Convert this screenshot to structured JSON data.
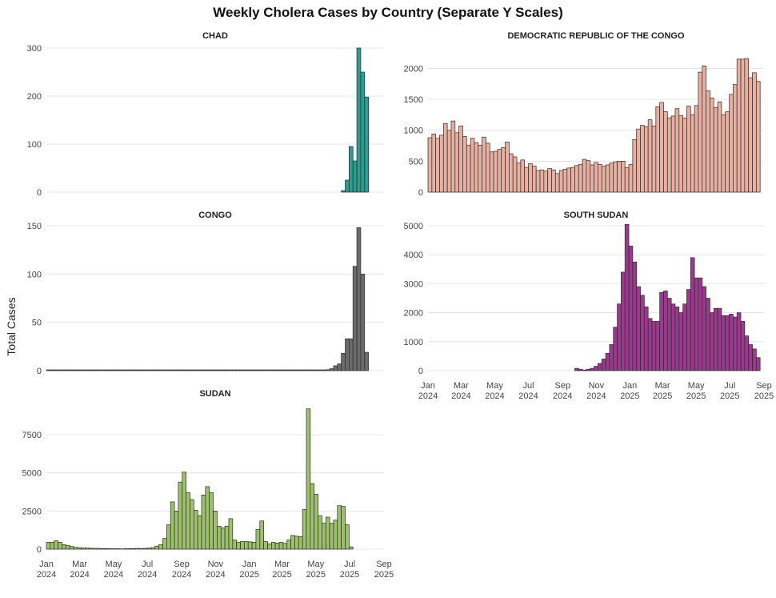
{
  "title": "Weekly Cholera Cases by Country (Separate Y Scales)",
  "ylabel": "Total Cases",
  "x_axis": {
    "tick_labels": [
      [
        "Jan",
        "2024"
      ],
      [
        "Mar",
        "2024"
      ],
      [
        "May",
        "2024"
      ],
      [
        "Jul",
        "2024"
      ],
      [
        "Sep",
        "2024"
      ],
      [
        "Nov",
        "2024"
      ],
      [
        "Jan",
        "2025"
      ],
      [
        "Mar",
        "2025"
      ],
      [
        "May",
        "2025"
      ],
      [
        "Jul",
        "2025"
      ],
      [
        "Sep",
        "2025"
      ]
    ]
  },
  "chart_data": [
    {
      "type": "bar",
      "title": "CHAD",
      "color": "#2a9d8f",
      "ylim": [
        0,
        300
      ],
      "yticks": [
        0,
        100,
        200,
        300
      ],
      "x": [
        "2025-06-16",
        "2025-06-23",
        "2025-06-30",
        "2025-07-07",
        "2025-07-14",
        "2025-07-21",
        "2025-07-28"
      ],
      "values": [
        3,
        25,
        95,
        65,
        300,
        250,
        198
      ]
    },
    {
      "type": "bar",
      "title": "DEMOCRATIC REPUBLIC OF THE CONGO",
      "color": "#e8b0a0",
      "ylim": [
        0,
        2200
      ],
      "yticks": [
        0,
        500,
        1000,
        1500,
        2000
      ],
      "x_start": "2024-01-01",
      "week_step_days": 7,
      "values": [
        880,
        940,
        870,
        920,
        1110,
        1000,
        1150,
        960,
        1070,
        900,
        760,
        870,
        800,
        760,
        890,
        790,
        650,
        660,
        690,
        720,
        810,
        620,
        570,
        470,
        520,
        400,
        460,
        420,
        350,
        360,
        340,
        380,
        360,
        300,
        350,
        370,
        390,
        400,
        430,
        450,
        530,
        510,
        440,
        480,
        450,
        420,
        440,
        470,
        490,
        500,
        500,
        400,
        450,
        850,
        1020,
        1080,
        1060,
        1170,
        1070,
        1380,
        1450,
        1300,
        1200,
        1230,
        1350,
        1240,
        1200,
        1390,
        1250,
        1400,
        1940,
        2040,
        1640,
        1520,
        1370,
        1460,
        1250,
        1300,
        1580,
        1740,
        2150,
        2150,
        2160,
        1850,
        1930,
        1790
      ]
    },
    {
      "type": "bar",
      "title": "CONGO",
      "color": "#6b6b6b",
      "ylim": [
        0,
        150
      ],
      "yticks": [
        0,
        50,
        100,
        150
      ],
      "x_start": "2024-01-01",
      "week_step_days": 7,
      "baseline_weeks": 72,
      "x": [
        "2025-05-19",
        "2025-05-26",
        "2025-06-02",
        "2025-06-09",
        "2025-06-16",
        "2025-06-23",
        "2025-06-30",
        "2025-07-07",
        "2025-07-14",
        "2025-07-21",
        "2025-07-28"
      ],
      "values": [
        1,
        2,
        5,
        7,
        18,
        33,
        33,
        108,
        148,
        100,
        19
      ]
    },
    {
      "type": "bar",
      "title": "SOUTH SUDAN",
      "color": "#9a3a8c",
      "ylim": [
        0,
        5000
      ],
      "yticks": [
        0,
        1000,
        2000,
        3000,
        4000,
        5000
      ],
      "x": [
        "2024-09-23",
        "2024-09-30",
        "2024-10-07",
        "2024-10-14",
        "2024-10-21",
        "2024-10-28",
        "2024-11-04",
        "2024-11-11",
        "2024-11-18",
        "2024-11-25",
        "2024-12-02",
        "2024-12-09",
        "2024-12-16",
        "2024-12-23",
        "2024-12-30",
        "2025-01-06",
        "2025-01-13",
        "2025-01-20",
        "2025-01-27",
        "2025-02-03",
        "2025-02-10",
        "2025-02-17",
        "2025-02-24",
        "2025-03-03",
        "2025-03-10",
        "2025-03-17",
        "2025-03-24",
        "2025-03-31",
        "2025-04-07",
        "2025-04-14",
        "2025-04-21",
        "2025-04-28",
        "2025-05-05",
        "2025-05-12",
        "2025-05-19",
        "2025-05-26",
        "2025-06-02",
        "2025-06-09",
        "2025-06-16",
        "2025-06-23",
        "2025-06-30",
        "2025-07-07",
        "2025-07-14",
        "2025-07-21",
        "2025-07-28",
        "2025-08-04",
        "2025-08-11",
        "2025-08-18"
      ],
      "values": [
        80,
        50,
        20,
        50,
        80,
        150,
        250,
        400,
        600,
        900,
        1500,
        2300,
        3400,
        5050,
        4300,
        3750,
        2900,
        2600,
        2200,
        1800,
        1700,
        1700,
        2700,
        2750,
        2500,
        2300,
        2200,
        2000,
        2300,
        2800,
        3900,
        3200,
        3200,
        2900,
        2500,
        2000,
        2150,
        2150,
        1900,
        1900,
        1950,
        1850,
        2000,
        1700,
        1200,
        900,
        750,
        450
      ]
    },
    {
      "type": "bar",
      "title": "SUDAN",
      "color": "#9dc26b",
      "ylim": [
        0,
        9500
      ],
      "yticks": [
        0,
        2500,
        5000,
        7500
      ],
      "x_start": "2024-01-01",
      "week_step_days": 7,
      "values": [
        450,
        450,
        550,
        450,
        300,
        250,
        180,
        120,
        100,
        80,
        80,
        60,
        50,
        50,
        40,
        40,
        30,
        30,
        30,
        20,
        30,
        40,
        40,
        50,
        40,
        50,
        80,
        100,
        200,
        300,
        700,
        1600,
        3100,
        2500,
        4400,
        5050,
        3700,
        3250,
        2550,
        2200,
        3550,
        4100,
        3700,
        2500,
        1500,
        1400,
        1500,
        2000,
        600,
        450,
        500,
        500,
        480,
        450,
        1300,
        1850,
        500,
        350,
        450,
        400,
        450,
        380,
        600,
        900,
        850,
        820,
        2600,
        9200,
        4300,
        3600,
        2200,
        1700,
        2100,
        1700,
        1900,
        2850,
        2800,
        1600,
        150
      ]
    }
  ]
}
